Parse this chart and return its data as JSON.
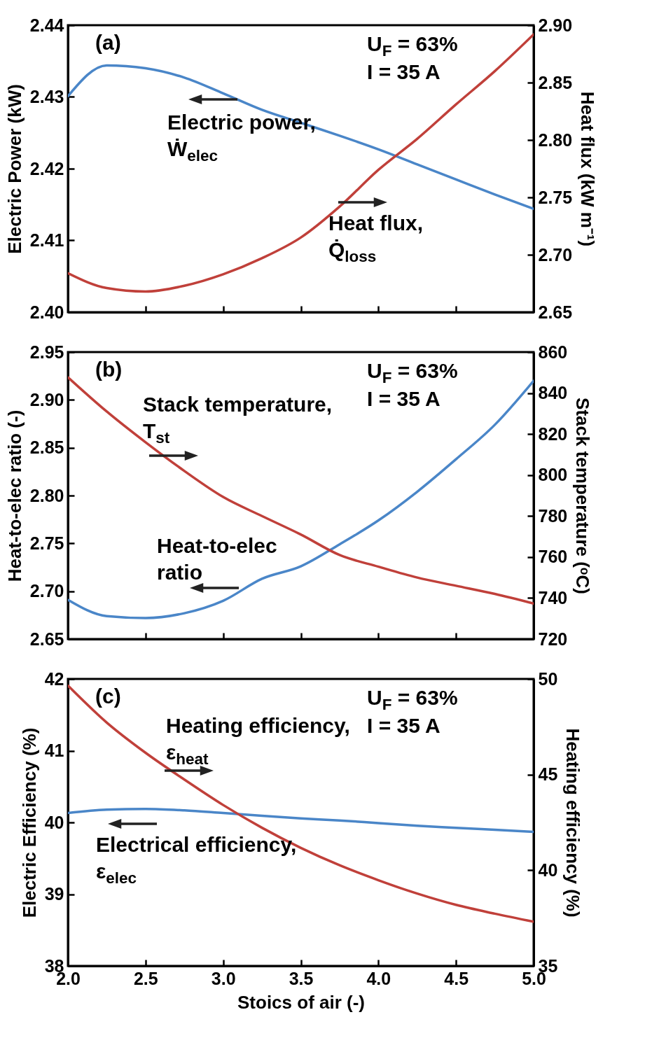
{
  "chart_data": [
    {
      "type": "line",
      "x": [
        2,
        2.25,
        2.5,
        2.75,
        3,
        3.25,
        3.5,
        3.75,
        4,
        4.25,
        4.5,
        4.75,
        5
      ],
      "xlim": [
        2,
        5
      ],
      "xticks": [
        {
          "value": 2,
          "label": null
        },
        {
          "value": 2.5,
          "label": null
        },
        {
          "value": 3,
          "label": null
        },
        {
          "value": 3.5,
          "label": null
        },
        {
          "value": 4,
          "label": null
        },
        {
          "value": 4.5,
          "label": null
        },
        {
          "value": 5,
          "label": null
        }
      ],
      "ylabel": "Electric Power (kW)",
      "y2label": "Heat flux (kW m⁻¹)",
      "ylim": [
        2.4,
        2.44
      ],
      "yticks": [
        {
          "value": 2.4,
          "label": "2.40"
        },
        2.41,
        2.42,
        2.43,
        2.44
      ],
      "y2lim": [
        2.65,
        2.9
      ],
      "y2ticks": [
        2.65,
        {
          "value": 2.7,
          "label": "2.70"
        },
        2.75,
        {
          "value": 2.8,
          "label": "2.80"
        },
        2.85,
        {
          "value": 2.9,
          "label": "2.90"
        }
      ],
      "tick_labels": "y",
      "grid": false,
      "series": [
        {
          "color": "#4a86c8",
          "values": [
            2.4301,
            2.4344,
            2.434,
            2.4327,
            2.4305,
            2.4282,
            2.4264,
            2.4246,
            2.4227,
            2.4206,
            2.4185,
            2.4164,
            2.4144
          ]
        },
        {
          "color": "#c0403a",
          "axis": "y2",
          "values": [
            2.684,
            2.671,
            2.668,
            2.673,
            2.683,
            2.697,
            2.715,
            2.742,
            2.774,
            2.801,
            2.831,
            2.86,
            2.892
          ]
        }
      ],
      "annotations": [
        "(a)",
        "U$_{F}$ = 63%",
        "I = 35 A",
        "Electric power, Ẇ$_{elec}$",
        "Heat flux, Q̇$_{loss}$"
      ]
    },
    {
      "type": "line",
      "x": [
        2,
        2.25,
        2.5,
        2.75,
        3,
        3.25,
        3.5,
        3.75,
        4,
        4.25,
        4.5,
        4.75,
        5
      ],
      "xlim": [
        2,
        5
      ],
      "xticks": [
        {
          "value": 2,
          "label": null
        },
        {
          "value": 2.5,
          "label": null
        },
        {
          "value": 3,
          "label": null
        },
        {
          "value": 3.5,
          "label": null
        },
        {
          "value": 4,
          "label": null
        },
        {
          "value": 4.5,
          "label": null
        },
        {
          "value": 5,
          "label": null
        }
      ],
      "ylabel": "Heat-to-elec ratio (-)",
      "y2label": "Stack temperature (ᵒC)",
      "ylim": [
        2.65,
        2.95
      ],
      "yticks": [
        2.65,
        {
          "value": 2.7,
          "label": "2.70"
        },
        2.75,
        {
          "value": 2.8,
          "label": "2.80"
        },
        2.85,
        {
          "value": 2.9,
          "label": "2.90"
        },
        2.95
      ],
      "y2lim": [
        720,
        860
      ],
      "y2ticks": [
        720,
        740,
        760,
        780,
        800,
        820,
        840,
        860
      ],
      "tick_labels": "y",
      "grid": false,
      "series": [
        {
          "color": "#4a86c8",
          "values": [
            2.691,
            2.674,
            2.672,
            2.677,
            2.69,
            2.713,
            2.726,
            2.749,
            2.774,
            2.804,
            2.838,
            2.874,
            2.92
          ]
        },
        {
          "color": "#c0403a",
          "axis": "y2",
          "values": [
            847.7,
            831,
            816,
            802,
            789.3,
            780,
            771,
            761,
            755.3,
            750,
            746,
            742,
            737.3
          ]
        }
      ],
      "annotations": [
        "(b)",
        "U$_{F}$ = 63%",
        "I = 35 A",
        "Stack temperature, T$_{st}$",
        "Heat-to-elec ratio"
      ]
    },
    {
      "type": "line",
      "x": [
        2,
        2.25,
        2.5,
        2.75,
        3,
        3.25,
        3.5,
        3.75,
        4,
        4.25,
        4.5,
        4.75,
        5
      ],
      "xlim": [
        2,
        5
      ],
      "xticks": [
        {
          "value": 2,
          "label": "2.0"
        },
        2.5,
        {
          "value": 3,
          "label": "3.0"
        },
        3.5,
        {
          "value": 4,
          "label": "4.0"
        },
        4.5,
        {
          "value": 5,
          "label": "5.0"
        }
      ],
      "xlabel": "Stoics of air (-)",
      "ylabel": "Electric Efficiency (%)",
      "y2label": "Heating efficiency (%)",
      "ylim": [
        38,
        42
      ],
      "yticks": [
        38,
        39,
        40,
        41,
        42
      ],
      "y2lim": [
        35,
        50
      ],
      "y2ticks": [
        35,
        40,
        45,
        50
      ],
      "grid": false,
      "series": [
        {
          "color": "#4a86c8",
          "values": [
            40.131,
            40.178,
            40.187,
            40.168,
            40.131,
            40.093,
            40.056,
            40.028,
            39.99,
            39.953,
            39.925,
            39.897,
            39.869
          ]
        },
        {
          "color": "#c0403a",
          "axis": "y2",
          "values": [
            49.65,
            47.72,
            46.14,
            44.74,
            43.41,
            42.22,
            41.17,
            40.26,
            39.48,
            38.78,
            38.19,
            37.73,
            37.31
          ]
        }
      ],
      "annotations": [
        "(c)",
        "U$_{F}$ = 63%",
        "I = 35 A",
        "Heating efficiency, ε$_{heat}$",
        "Electrical efficiency, ε$_{elec}$"
      ]
    }
  ]
}
